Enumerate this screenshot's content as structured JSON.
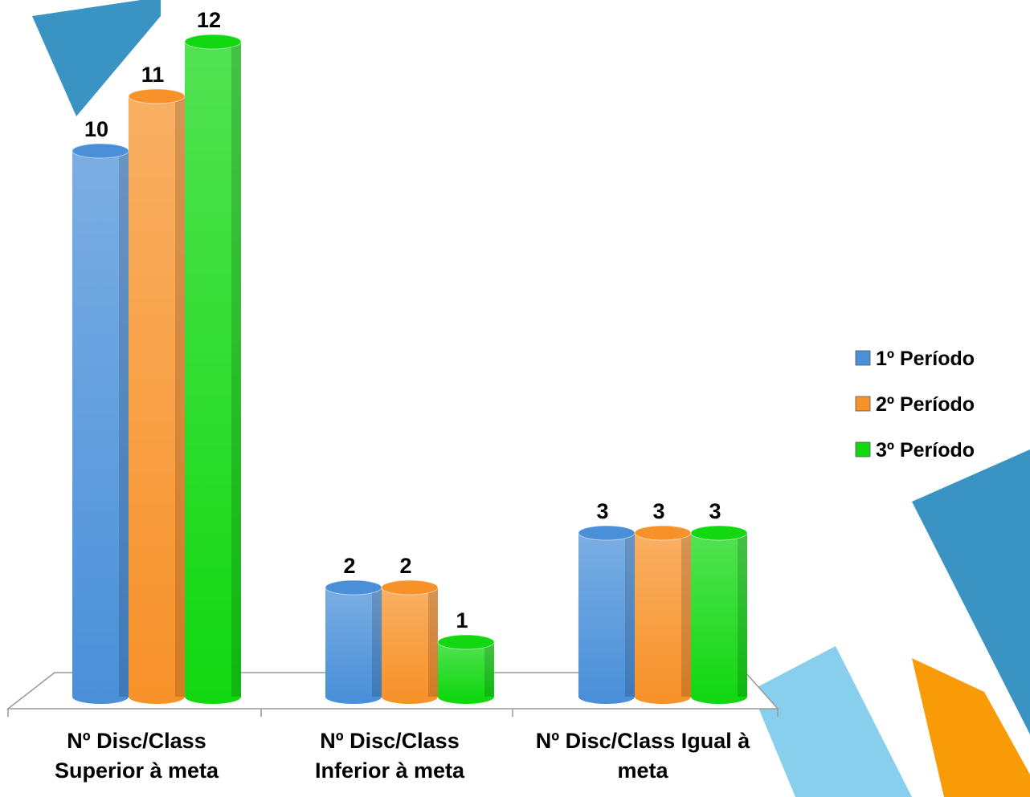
{
  "chart_data": {
    "type": "bar3d",
    "categories": [
      "Nº Disc/Class Superior à meta",
      "Nº Disc/Class Inferior à meta",
      "Nº Disc/Class Igual à meta"
    ],
    "series": [
      {
        "name": "1º Período",
        "color": "#4a90d9",
        "values": [
          10,
          2,
          3
        ]
      },
      {
        "name": "2º Período",
        "color": "#f7922a",
        "values": [
          11,
          2,
          3
        ]
      },
      {
        "name": "3º Período",
        "color": "#12d812",
        "values": [
          12,
          1,
          3
        ]
      }
    ],
    "legend": "right"
  }
}
